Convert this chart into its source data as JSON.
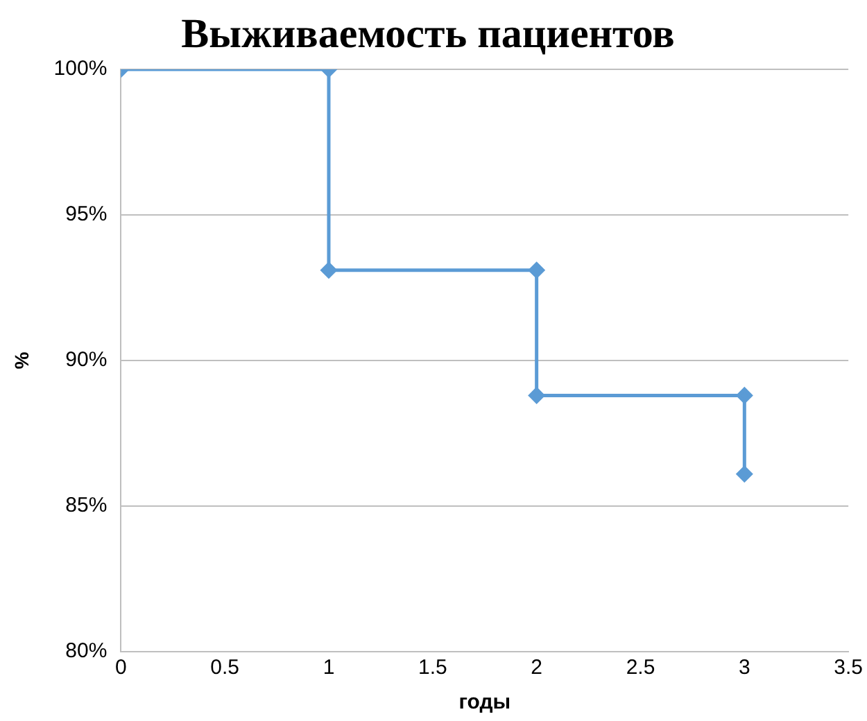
{
  "chart_data": {
    "type": "line",
    "title": "Выживаемость пациентов",
    "xlabel": "годы",
    "ylabel": "%",
    "x": [
      0,
      1,
      1,
      2,
      2,
      3,
      3
    ],
    "series": [
      {
        "color": "#5b9bd5",
        "values": [
          100,
          100,
          93.1,
          93.1,
          88.8,
          88.8,
          86.1
        ]
      }
    ],
    "xlim": [
      0,
      3.5
    ],
    "xticks": [
      0,
      0.5,
      1,
      1.5,
      2,
      2.5,
      3,
      3.5
    ],
    "ylim": [
      80,
      100
    ],
    "yticks": [
      {
        "value": 80,
        "label": "80%"
      },
      {
        "value": 85,
        "label": "85%"
      },
      {
        "value": 90,
        "label": "90%"
      },
      {
        "value": 95,
        "label": "95%"
      },
      {
        "value": 100,
        "label": "100%"
      }
    ],
    "grid": "y",
    "marker": "diamond",
    "line_style": "solid",
    "legend": false
  }
}
